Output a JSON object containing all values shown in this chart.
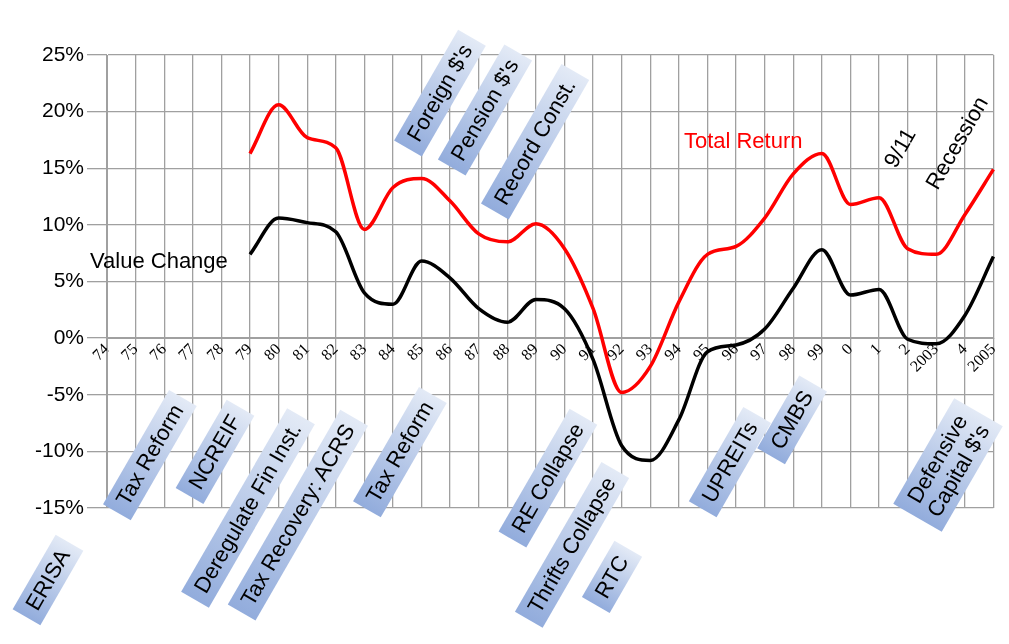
{
  "chart_data": {
    "type": "line",
    "categories": [
      "74",
      "75",
      "76",
      "77",
      "78",
      "79",
      "80",
      "81",
      "82",
      "83",
      "84",
      "85",
      "86",
      "87",
      "88",
      "89",
      "90",
      "91",
      "92",
      "93",
      "94",
      "95",
      "96",
      "97",
      "98",
      "99",
      "0",
      "1",
      "2",
      "2003",
      "4",
      "2005"
    ],
    "series": [
      {
        "name": "Total Return",
        "color": "#ff0000",
        "values": [
          null,
          null,
          null,
          null,
          null,
          16.3,
          20.6,
          17.7,
          16.8,
          9.6,
          13.3,
          14.1,
          12.1,
          9.2,
          8.5,
          10.1,
          7.9,
          2.6,
          -4.8,
          -2.5,
          3.2,
          7.4,
          8.1,
          10.6,
          14.5,
          16.3,
          11.8,
          12.4,
          7.9,
          7.4,
          10.9,
          14.9
        ]
      },
      {
        "name": "Value Change",
        "color": "#000000",
        "values": [
          null,
          null,
          null,
          null,
          null,
          7.4,
          10.6,
          10.2,
          9.4,
          4,
          3,
          6.8,
          5.3,
          2.6,
          1.4,
          3.4,
          2.6,
          -1.9,
          -9.5,
          -10.8,
          -7.2,
          -1.2,
          -0.6,
          0.8,
          4.4,
          7.8,
          3.8,
          4.3,
          -0.1,
          -0.5,
          2,
          7.2
        ]
      }
    ],
    "ylim": [
      -15,
      25
    ],
    "yticks": [
      {
        "value": -15,
        "label": "-15%"
      },
      {
        "value": -10,
        "label": "-10%"
      },
      {
        "value": -5,
        "label": "-5%"
      },
      {
        "value": 0,
        "label": "0%"
      },
      {
        "value": 5,
        "label": "5%"
      },
      {
        "value": 10,
        "label": "10%"
      },
      {
        "value": 15,
        "label": "15%"
      },
      {
        "value": 20,
        "label": "20%"
      },
      {
        "value": 25,
        "label": "25%"
      }
    ],
    "grid": true,
    "legend": false,
    "marker": "none",
    "line_style": "solid",
    "annotations": [
      "ERISA",
      "Tax Reform",
      "NCREIF",
      "Deregulate Fin Inst.",
      "Tax Recovery: ACRS",
      "Tax Reform",
      "Foreign $'s",
      "Pension $'s",
      "Record Const.",
      "RE Collapse",
      "Thrifts Collapse",
      "RTC",
      "UPREITs",
      "CMBS",
      "9/11",
      "Recession",
      "Defensive\nCapital $'s"
    ]
  }
}
